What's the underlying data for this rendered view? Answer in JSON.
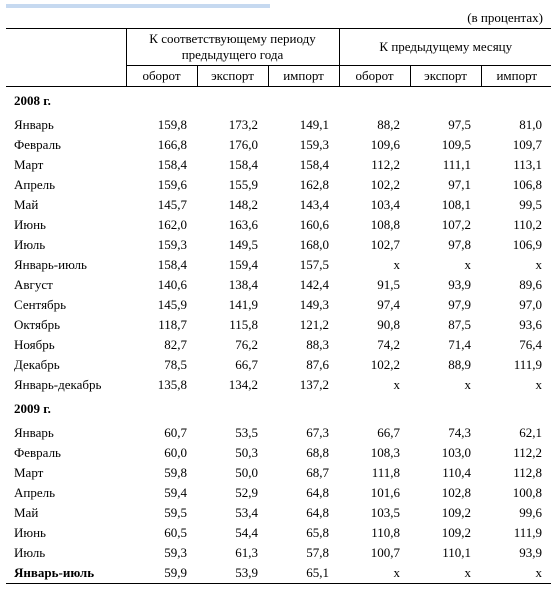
{
  "unit_label": "(в процентах)",
  "header": {
    "group_a": "К соответствующему периоду предыдущего года",
    "group_b": "К предыдущему месяцу",
    "sub": {
      "turnover": "оборот",
      "export": "экспорт",
      "import": "импорт"
    }
  },
  "sections": [
    {
      "year_label": "2008 г.",
      "rows": [
        {
          "label": "Январь",
          "v": [
            "159,8",
            "173,2",
            "149,1",
            "88,2",
            "97,5",
            "81,0"
          ]
        },
        {
          "label": "Февраль",
          "v": [
            "166,8",
            "176,0",
            "159,3",
            "109,6",
            "109,5",
            "109,7"
          ]
        },
        {
          "label": "Март",
          "v": [
            "158,4",
            "158,4",
            "158,4",
            "112,2",
            "111,1",
            "113,1"
          ]
        },
        {
          "label": "Апрель",
          "v": [
            "159,6",
            "155,9",
            "162,8",
            "102,2",
            "97,1",
            "106,8"
          ]
        },
        {
          "label": "Май",
          "v": [
            "145,7",
            "148,2",
            "143,4",
            "103,4",
            "108,1",
            "99,5"
          ]
        },
        {
          "label": "Июнь",
          "v": [
            "162,0",
            "163,6",
            "160,6",
            "108,8",
            "107,2",
            "110,2"
          ]
        },
        {
          "label": "Июль",
          "v": [
            "159,3",
            "149,5",
            "168,0",
            "102,7",
            "97,8",
            "106,9"
          ]
        },
        {
          "label": "Январь-июль",
          "v": [
            "158,4",
            "159,4",
            "157,5",
            "x",
            "x",
            "x"
          ]
        },
        {
          "label": "Август",
          "v": [
            "140,6",
            "138,4",
            "142,4",
            "91,5",
            "93,9",
            "89,6"
          ]
        },
        {
          "label": "Сентябрь",
          "v": [
            "145,9",
            "141,9",
            "149,3",
            "97,4",
            "97,9",
            "97,0"
          ]
        },
        {
          "label": "Октябрь",
          "v": [
            "118,7",
            "115,8",
            "121,2",
            "90,8",
            "87,5",
            "93,6"
          ]
        },
        {
          "label": "Ноябрь",
          "v": [
            "82,7",
            "76,2",
            "88,3",
            "74,2",
            "71,4",
            "76,4"
          ]
        },
        {
          "label": "Декабрь",
          "v": [
            "78,5",
            "66,7",
            "87,6",
            "102,2",
            "88,9",
            "111,9"
          ]
        },
        {
          "label": "Январь-декабрь",
          "v": [
            "135,8",
            "134,2",
            "137,2",
            "x",
            "x",
            "x"
          ]
        }
      ]
    },
    {
      "year_label": "2009 г.",
      "rows": [
        {
          "label": "Январь",
          "v": [
            "60,7",
            "53,5",
            "67,3",
            "66,7",
            "74,3",
            "62,1"
          ]
        },
        {
          "label": "Февраль",
          "v": [
            "60,0",
            "50,3",
            "68,8",
            "108,3",
            "103,0",
            "112,2"
          ]
        },
        {
          "label": "Март",
          "v": [
            "59,8",
            "50,0",
            "68,7",
            "111,8",
            "110,4",
            "112,8"
          ]
        },
        {
          "label": "Апрель",
          "v": [
            "59,4",
            "52,9",
            "64,8",
            "101,6",
            "102,8",
            "100,8"
          ]
        },
        {
          "label": "Май",
          "v": [
            "59,5",
            "53,4",
            "64,8",
            "103,5",
            "109,2",
            "99,6"
          ]
        },
        {
          "label": "Июнь",
          "v": [
            "60,5",
            "54,4",
            "65,8",
            "110,8",
            "109,2",
            "111,9"
          ]
        },
        {
          "label": "Июль",
          "v": [
            "59,3",
            "61,3",
            "57,8",
            "100,7",
            "110,1",
            "93,9"
          ]
        },
        {
          "label": "Январь-июль",
          "v": [
            "59,9",
            "53,9",
            "65,1",
            "x",
            "x",
            "x"
          ],
          "total": true
        }
      ]
    }
  ],
  "style": {
    "font_family": "Times New Roman",
    "font_size_pt": 10,
    "text_color": "#000000",
    "background": "#ffffff",
    "rule_color": "#000000",
    "top_strip_color": "#c6d9f0"
  }
}
